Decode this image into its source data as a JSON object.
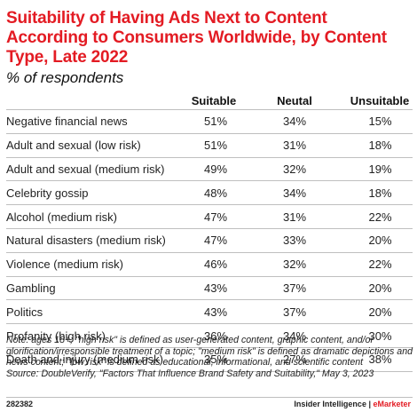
{
  "title": "Suitability of Having Ads Next to Content According to Consumers Worldwide, by Content Type, Late 2022",
  "subtitle": "% of respondents",
  "chart_data": {
    "type": "table",
    "title": "Suitability of Having Ads Next to Content According to Consumers Worldwide, by Content Type, Late 2022",
    "subtitle": "% of respondents",
    "columns": [
      "Suitable",
      "Neutal",
      "Unsuitable"
    ],
    "rows": [
      {
        "label": "Negative financial news",
        "values": [
          "51%",
          "34%",
          "15%"
        ]
      },
      {
        "label": "Adult and sexual (low risk)",
        "values": [
          "51%",
          "31%",
          "18%"
        ]
      },
      {
        "label": "Adult and sexual (medium risk)",
        "values": [
          "49%",
          "32%",
          "19%"
        ]
      },
      {
        "label": "Celebrity gossip",
        "values": [
          "48%",
          "34%",
          "18%"
        ]
      },
      {
        "label": "Alcohol (medium risk)",
        "values": [
          "47%",
          "31%",
          "22%"
        ]
      },
      {
        "label": "Natural disasters (medium risk)",
        "values": [
          "47%",
          "33%",
          "20%"
        ]
      },
      {
        "label": "Violence (medium risk)",
        "values": [
          "46%",
          "32%",
          "22%"
        ]
      },
      {
        "label": "Gambling",
        "values": [
          "43%",
          "37%",
          "20%"
        ]
      },
      {
        "label": "Politics",
        "values": [
          "43%",
          "37%",
          "20%"
        ]
      },
      {
        "label": "Profanity (high risk)",
        "values": [
          "36%",
          "34%",
          "30%"
        ]
      },
      {
        "label": "Death and injury (medium risk)",
        "values": [
          "35%",
          "27%",
          "38%"
        ]
      }
    ]
  },
  "note": "Note: ages 18+; \"high risk\" is defined as user-generated content, graphic content, and/or glorification/irresponsible treatment of a topic; \"medium risk\" is defined as dramatic depictions and news content; \"low risk\" is defined as educational, informational, and scientific content",
  "source": "Source: DoubleVerify, \"Factors That Influence Brand Safety and Suitability,\" May 3, 2023",
  "footer": {
    "chart_id": "282382",
    "brand_prefix": "Insider Intelligence | ",
    "brand_accent": "eMarketer"
  },
  "colors": {
    "title": "#e31b23",
    "rule": "#bfbfbf",
    "text": "#222222"
  }
}
